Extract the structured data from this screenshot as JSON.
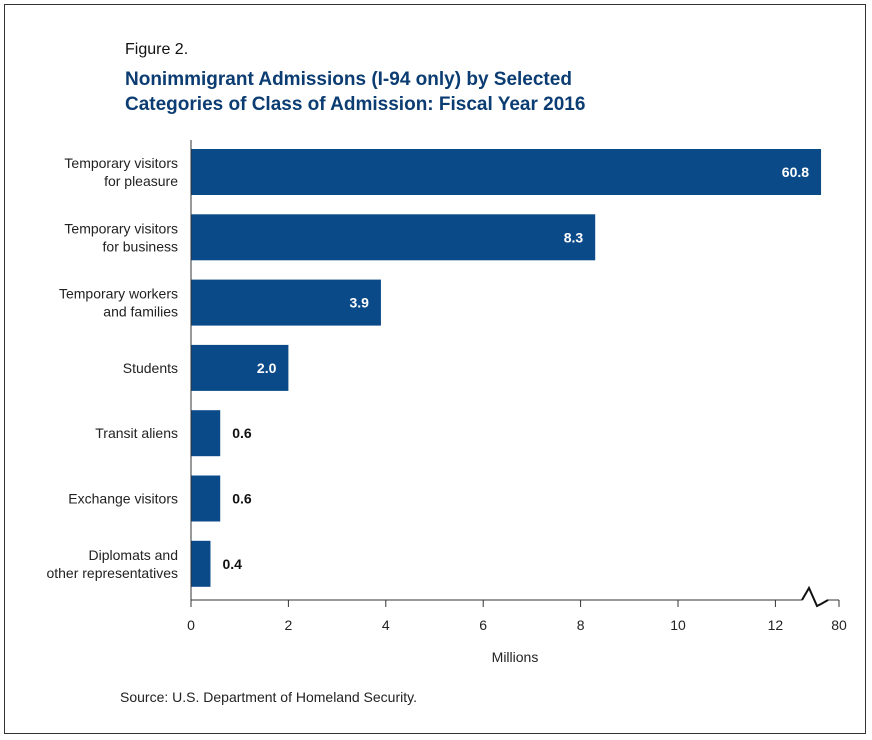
{
  "figure_label": "Figure 2.",
  "title_lines": [
    "Nonimmigrant Admissions (I-94 only) by Selected",
    "Categories of Class of Admission: Fiscal Year 2016"
  ],
  "source": "Source: U.S. Department of Homeland Security.",
  "colors": {
    "bar": "#0b4a88",
    "title": "#0b3c72",
    "axis": "#333333"
  },
  "chart_data": {
    "type": "bar",
    "orientation": "horizontal",
    "title": "Nonimmigrant Admissions (I-94 only) by Selected Categories of Class of Admission: Fiscal Year 2016",
    "xlabel": "Millions",
    "ylabel": "",
    "categories": [
      [
        "Temporary visitors",
        "for pleasure"
      ],
      [
        "Temporary visitors",
        "for business"
      ],
      [
        "Temporary workers",
        "and families"
      ],
      [
        "Students"
      ],
      [
        "Transit aliens"
      ],
      [
        "Exchange visitors"
      ],
      [
        "Diplomats and",
        "other representatives"
      ]
    ],
    "values": [
      60.8,
      8.3,
      3.9,
      2.0,
      0.6,
      0.6,
      0.4
    ],
    "value_labels": [
      "60.8",
      "8.3",
      "3.9",
      "2.0",
      "0.6",
      "0.6",
      "0.4"
    ],
    "xticks": [
      0,
      2,
      4,
      6,
      8,
      10,
      12,
      80
    ],
    "xticks_shown": [
      "0",
      "2",
      "4",
      "6",
      "8",
      "10",
      "12",
      "80"
    ],
    "xlim": [
      0,
      80
    ],
    "axis_break": "between 12 and 80",
    "grid": false,
    "legend": "none"
  }
}
